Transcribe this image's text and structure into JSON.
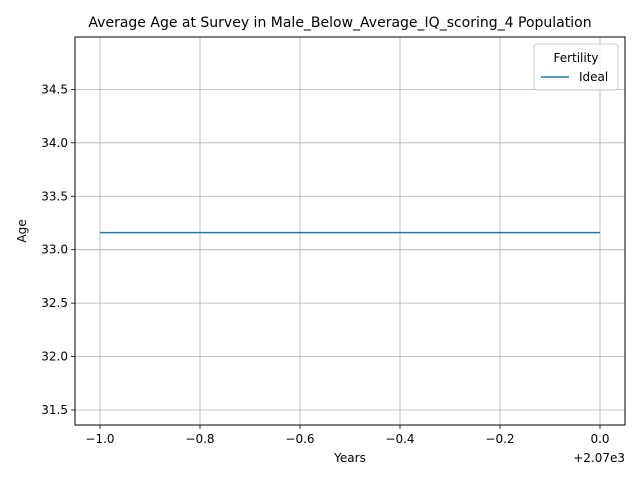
{
  "chart_data": {
    "type": "line",
    "title": "Average Age at Survey in Male_Below_Average_IQ_scoring_4 Population",
    "xlabel": "Years",
    "ylabel": "Age",
    "x_offset_label": "+2.07e3",
    "x_ticks": [
      {
        "value": 2069.0,
        "label": "−1.0"
      },
      {
        "value": 2069.2,
        "label": "−0.8"
      },
      {
        "value": 2069.4,
        "label": "−0.6"
      },
      {
        "value": 2069.6,
        "label": "−0.4"
      },
      {
        "value": 2069.8,
        "label": "−0.2"
      },
      {
        "value": 2070.0,
        "label": "0.0"
      }
    ],
    "y_ticks": [
      {
        "value": 31.5,
        "label": "31.5"
      },
      {
        "value": 32.0,
        "label": "32.0"
      },
      {
        "value": 32.5,
        "label": "32.5"
      },
      {
        "value": 33.0,
        "label": "33.0"
      },
      {
        "value": 33.5,
        "label": "33.5"
      },
      {
        "value": 34.0,
        "label": "34.0"
      },
      {
        "value": 34.5,
        "label": "34.5"
      }
    ],
    "xlim": [
      2068.95,
      2070.05
    ],
    "ylim": [
      31.36,
      34.99
    ],
    "grid": true,
    "legend": {
      "title": "Fertility",
      "placement": "top-right"
    },
    "series": [
      {
        "name": "Ideal",
        "color": "#1f77b4",
        "x": [
          2069,
          2070
        ],
        "y": [
          33.16,
          33.16
        ]
      }
    ]
  }
}
